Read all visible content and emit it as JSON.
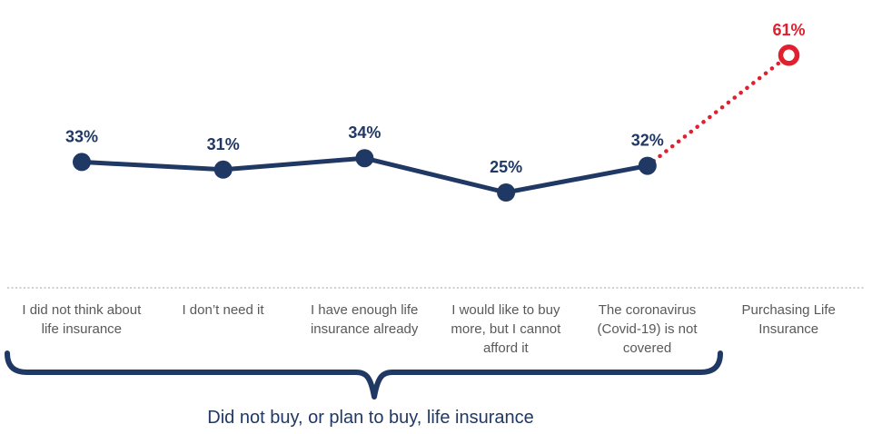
{
  "chart_data": {
    "type": "line",
    "title": "",
    "xlabel": "",
    "ylabel": "",
    "categories": [
      "I did not think about life insurance",
      "I don’t need it",
      "I have enough life insurance already",
      "I would like to buy more, but I cannot afford it",
      "The coronavirus (Covid-19) is not covered",
      "Purchasing Life Insurance"
    ],
    "values": [
      33,
      31,
      34,
      25,
      32,
      61
    ],
    "value_labels": [
      "33%",
      "31%",
      "34%",
      "25%",
      "32%",
      "61%"
    ],
    "highlight_index": 5,
    "series": [
      {
        "name": "Did not buy, or plan to buy, life insurance",
        "style": "solid-navy-filled-markers",
        "point_indexes": [
          0,
          1,
          2,
          3,
          4
        ]
      },
      {
        "name": "Purchasing Life Insurance",
        "style": "dotted-red-open-marker",
        "point_indexes": [
          4,
          5
        ]
      }
    ],
    "annotation": "Did not buy, or plan to buy, life insurance",
    "ylim": [
      0,
      75
    ],
    "grid": "off",
    "axis_style": "horizontal dotted gray baseline only, no y-axis, no legend",
    "colors": {
      "navy": "#1F3864",
      "red": "#E0202E",
      "category_gray": "#595959",
      "axis_gray": "#BFBFBF"
    }
  }
}
